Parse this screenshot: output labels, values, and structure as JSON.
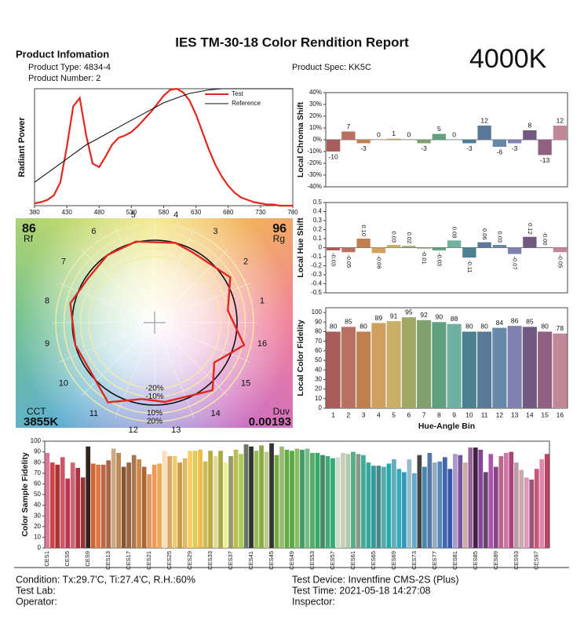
{
  "header": {
    "title": "IES TM-30-18 Color Rendition Report",
    "section": "Product Infomation",
    "product_type": "Product Type: 4834-4",
    "product_number": "Product Number: 2",
    "product_spec": "Product Spec: KK5C",
    "cct_big": "4000K"
  },
  "footer": {
    "condition": "Condition: Tx:29.7'C, Ti:27.4'C, R.H.:60%",
    "test_lab": "Test Lab:",
    "operator": "Operator:",
    "test_device": "Test Device: Inventfine CMS-2S (Plus)",
    "test_time": "Test Time: 2021-05-18 14:27:08",
    "inspector": "Inspector:"
  },
  "chart_data": [
    {
      "type": "line",
      "y_label": "Radiant Power",
      "x": [
        380,
        390,
        400,
        410,
        420,
        430,
        440,
        450,
        460,
        470,
        480,
        490,
        500,
        510,
        520,
        530,
        540,
        550,
        560,
        570,
        580,
        590,
        600,
        610,
        620,
        630,
        640,
        650,
        660,
        670,
        680,
        690,
        700,
        710,
        720,
        730,
        740,
        750,
        760,
        770,
        780
      ],
      "xlim": [
        380,
        780
      ],
      "xticks": [
        380,
        430,
        480,
        530,
        580,
        630,
        680,
        730,
        780
      ],
      "ylim": [
        0,
        1
      ],
      "series": [
        {
          "name": "Test",
          "color": "#e0281e",
          "values": [
            0.02,
            0.03,
            0.05,
            0.09,
            0.2,
            0.5,
            0.85,
            0.92,
            0.6,
            0.36,
            0.33,
            0.42,
            0.52,
            0.58,
            0.6,
            0.63,
            0.68,
            0.74,
            0.8,
            0.87,
            0.94,
            0.99,
            1,
            0.97,
            0.9,
            0.78,
            0.63,
            0.48,
            0.35,
            0.25,
            0.17,
            0.11,
            0.07,
            0.05,
            0.03,
            0.02,
            0.01,
            0.01,
            0,
            0,
            0
          ]
        },
        {
          "name": "Reference",
          "color": "#111111",
          "values": [
            0.2,
            0.24,
            0.28,
            0.32,
            0.36,
            0.4,
            0.44,
            0.48,
            0.52,
            0.55,
            0.58,
            0.61,
            0.64,
            0.67,
            0.7,
            0.73,
            0.76,
            0.79,
            0.82,
            0.85,
            0.88,
            0.9,
            0.92,
            0.94,
            0.96,
            0.97,
            0.98,
            0.99,
            0.995,
            1,
            1,
            1,
            1,
            1,
            1,
            1,
            1,
            1,
            1,
            1,
            1
          ]
        }
      ]
    },
    {
      "type": "vector",
      "rf_label": "Rf",
      "rf": 86,
      "rg_label": "Rg",
      "rg": 96,
      "cct_label": "CCT",
      "cct": "3855K",
      "duv_label": "Duv",
      "duv": 0.00193,
      "rings": [
        {
          "value": -20,
          "label": "-20%"
        },
        {
          "value": -10,
          "label": "-10%"
        },
        {
          "value": 10,
          "label": "10%"
        },
        {
          "value": 20,
          "label": "20%"
        }
      ],
      "test_color": "#e0281e",
      "reference_color": "#111111"
    },
    {
      "type": "bar",
      "y_label": "Local Chroma Shift",
      "values": [
        -10,
        7,
        -3,
        0,
        1,
        0,
        -3,
        5,
        0,
        -3,
        12,
        -6,
        -3,
        8,
        -13,
        12
      ],
      "colors": [
        "#a85c5c",
        "#b87060",
        "#c08050",
        "#d0a060",
        "#c8b068",
        "#a0a868",
        "#80a070",
        "#60a080",
        "#70b0a0",
        "#4a8090",
        "#5a7898",
        "#6888a8",
        "#8080b0",
        "#705880",
        "#906080",
        "#c08898"
      ],
      "ylim": [
        -40,
        40
      ],
      "yticks": [
        {
          "value": 40,
          "label": "40%"
        },
        {
          "value": 30,
          "label": "30%"
        },
        {
          "value": 20,
          "label": "20%"
        },
        {
          "value": 10,
          "label": "10%"
        },
        {
          "value": 0,
          "label": "0%"
        },
        {
          "value": -10,
          "label": "-10%"
        },
        {
          "value": -20,
          "label": "-20%"
        },
        {
          "value": -30,
          "label": "-30%"
        },
        {
          "value": -40,
          "label": "-40%"
        }
      ]
    },
    {
      "type": "bar",
      "y_label": "Local Hue Shift",
      "values": [
        -0.03,
        -0.05,
        0.1,
        -0.06,
        0.03,
        0.02,
        -0.01,
        -0.03,
        0.08,
        -0.11,
        0.06,
        0.03,
        -0.07,
        0.12,
        0,
        -0.05
      ],
      "value_labels": [
        "-0.03",
        "-0.05",
        "0.10",
        "-0.06",
        "0.03",
        "0.02",
        "-0.01",
        "-0.03",
        "0.08",
        "-0.11",
        "0.06",
        "0.03",
        "-0.07",
        "0.12",
        "-0.00",
        "-0.05"
      ],
      "colors": [
        "#a85c5c",
        "#b87060",
        "#c08050",
        "#d0a060",
        "#c8b068",
        "#a0a868",
        "#80a070",
        "#60a080",
        "#70b0a0",
        "#4a8090",
        "#5a7898",
        "#6888a8",
        "#8080b0",
        "#705880",
        "#906080",
        "#c08898"
      ],
      "ylim": [
        -0.5,
        0.5
      ],
      "yticks": [
        0.5,
        0.4,
        0.3,
        0.2,
        0.1,
        0,
        -0.1,
        -0.2,
        -0.3,
        -0.4,
        -0.5
      ]
    },
    {
      "type": "bar",
      "y_label": "Local Color Fidelity",
      "x_label": "Hue-Angle Bin",
      "categories": [
        "1",
        "2",
        "3",
        "4",
        "5",
        "6",
        "7",
        "8",
        "9",
        "10",
        "11",
        "12",
        "13",
        "14",
        "15",
        "16"
      ],
      "values": [
        80,
        85,
        80,
        89,
        91,
        95,
        92,
        90,
        88,
        80,
        80,
        84,
        86,
        85,
        80,
        78
      ],
      "colors": [
        "#a85c5c",
        "#b87060",
        "#c08050",
        "#d0a060",
        "#c8b068",
        "#a0a868",
        "#80a070",
        "#60a080",
        "#70b0a0",
        "#4a8090",
        "#5a7898",
        "#6888a8",
        "#8080b0",
        "#705880",
        "#906080",
        "#c08898"
      ],
      "ylim": [
        0,
        105
      ],
      "yticks": [
        0,
        10,
        20,
        30,
        40,
        50,
        60,
        70,
        80,
        90,
        100
      ]
    },
    {
      "type": "bar",
      "y_label": "Color Sample Fidelity",
      "categories": [
        "CES1",
        null,
        null,
        null,
        "CES5",
        null,
        null,
        null,
        "CES9",
        null,
        null,
        null,
        "CES13",
        null,
        null,
        null,
        "CES17",
        null,
        null,
        null,
        "CES21",
        null,
        null,
        null,
        "CES25",
        null,
        null,
        null,
        "CES29",
        null,
        null,
        null,
        "CES33",
        null,
        null,
        null,
        "CES37",
        null,
        null,
        null,
        "CES41",
        null,
        null,
        null,
        "CES45",
        null,
        null,
        null,
        "CES49",
        null,
        null,
        null,
        "CES53",
        null,
        null,
        null,
        "CES57",
        null,
        null,
        null,
        "CES61",
        null,
        null,
        null,
        "CES65",
        null,
        null,
        null,
        "CES69",
        null,
        null,
        null,
        "CES73",
        null,
        null,
        null,
        "CES77",
        null,
        null,
        null,
        "CES81",
        null,
        null,
        null,
        "CES85",
        null,
        null,
        null,
        "CES89",
        null,
        null,
        null,
        "CES93",
        null,
        null,
        null,
        "CES97",
        null,
        null
      ],
      "values": [
        89,
        80,
        78,
        85,
        65,
        80,
        75,
        66,
        95,
        79,
        78,
        78,
        82,
        93,
        89,
        76,
        80,
        87,
        83,
        76,
        69,
        78,
        79,
        91,
        86,
        86,
        80,
        84,
        91,
        91,
        92,
        81,
        91,
        86,
        91,
        80,
        86,
        92,
        88,
        97,
        95,
        91,
        96,
        90,
        98,
        87,
        95,
        92,
        91,
        93,
        92,
        93,
        89,
        89,
        87,
        86,
        84,
        85,
        89,
        88,
        90,
        88,
        87,
        80,
        77,
        77,
        76,
        79,
        83,
        74,
        71,
        83,
        70,
        87,
        76,
        89,
        80,
        81,
        85,
        74,
        88,
        87,
        80,
        94,
        94,
        92,
        71,
        88,
        76,
        86,
        89,
        90,
        80,
        73,
        66,
        64,
        74,
        83,
        88
      ],
      "colors": [
        "#d79",
        "#c44",
        "#a33",
        "#c56",
        "#b35",
        "#c67",
        "#a34",
        "#933",
        "#322",
        "#c63",
        "#d74",
        "#b64",
        "#a64",
        "#ca8",
        "#b85",
        "#853",
        "#964",
        "#a75",
        "#c84",
        "#a63",
        "#d96",
        "#e95",
        "#ea5",
        "#fdb",
        "#da6",
        "#ec7",
        "#c94",
        "#db6",
        "#fc6",
        "#dc5",
        "#eb4",
        "#cb5",
        "#ba4",
        "#dd9",
        "#aa4",
        "#ee9",
        "#996",
        "#bb5",
        "#ac5",
        "#676",
        "#333",
        "#9b5",
        "#8a4",
        "#bc8",
        "#333",
        "#7a4",
        "#9b7",
        "#6a4",
        "#5a4",
        "#8b6",
        "#496",
        "#7b8",
        "#5a6",
        "#3a6",
        "#486",
        "#4a7",
        "#3a7",
        "#cdc",
        "#ccb",
        "#aca",
        "#5a8",
        "#898",
        "#4a9",
        "#3a9",
        "#399",
        "#488",
        "#5aa",
        "#2aa",
        "#6ab",
        "#3ab",
        "#39b",
        "#9bc",
        "#6ac",
        "#444",
        "#48a",
        "#57a",
        "#9ab",
        "#58b",
        "#46a",
        "#35a",
        "#a9c",
        "#759",
        "#caa",
        "#969",
        "#424",
        "#849",
        "#646",
        "#a5a",
        "#848",
        "#b68",
        "#c7a",
        "#a47",
        "#b9a",
        "#caa",
        "#d9b",
        "#957",
        "#c57",
        "#d8a",
        "#b46"
      ],
      "ylim": [
        0,
        100
      ],
      "yticks": [
        0,
        10,
        20,
        30,
        40,
        50,
        60,
        70,
        80,
        90,
        100
      ]
    }
  ]
}
